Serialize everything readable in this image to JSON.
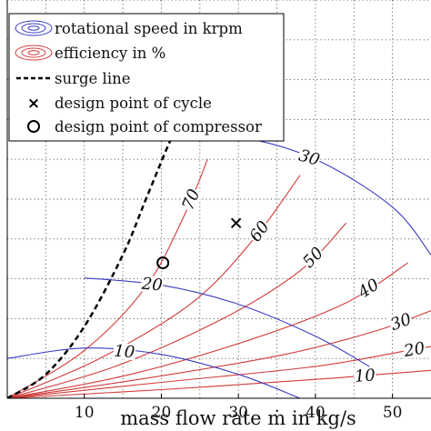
{
  "chart_data": {
    "type": "line",
    "title": "",
    "xlabel": "mass flow rate ṁ in kg/s",
    "ylabel": "",
    "xlim": [
      0,
      55
    ],
    "x_ticks": [
      "10",
      "20",
      "30",
      "40",
      "50"
    ],
    "grid": true,
    "legend_position": "top-left",
    "legend": [
      "rotational speed in krpm",
      "efficiency in %",
      "surge line",
      "design point of cycle",
      "design point of compressor"
    ],
    "colors": {
      "speed": "#3b3bc4",
      "efficiency": "#d23a3a",
      "surge": "#000000",
      "grid": "#555555"
    },
    "speed_lines": [
      {
        "label": "10",
        "points": [
          [
            0,
            0.05
          ],
          [
            10,
            0.063
          ],
          [
            20,
            0.055
          ],
          [
            30,
            0.03
          ],
          [
            38,
            0.0
          ]
        ]
      },
      {
        "label": "20",
        "points": [
          [
            10,
            0.151
          ],
          [
            20,
            0.142
          ],
          [
            30,
            0.118
          ],
          [
            40,
            0.078
          ],
          [
            47,
            0.04
          ]
        ]
      },
      {
        "label": "30",
        "points": [
          [
            20,
            0.33
          ],
          [
            30,
            0.328
          ],
          [
            40,
            0.3
          ],
          [
            50,
            0.24
          ],
          [
            55,
            0.18
          ]
        ]
      }
    ],
    "efficiency_contours": [
      {
        "label": "70",
        "points": [
          [
            0,
            0.0
          ],
          [
            10,
            0.06
          ],
          [
            18,
            0.14
          ],
          [
            23,
            0.23
          ],
          [
            26,
            0.3
          ]
        ]
      },
      {
        "label": "60",
        "points": [
          [
            0,
            0.0
          ],
          [
            12,
            0.05
          ],
          [
            24,
            0.12
          ],
          [
            32,
            0.2
          ],
          [
            38,
            0.28
          ]
        ]
      },
      {
        "label": "50",
        "points": [
          [
            0,
            0.0
          ],
          [
            14,
            0.04
          ],
          [
            28,
            0.1
          ],
          [
            38,
            0.16
          ],
          [
            44,
            0.22
          ]
        ]
      },
      {
        "label": "40",
        "points": [
          [
            0,
            0.0
          ],
          [
            16,
            0.03
          ],
          [
            32,
            0.075
          ],
          [
            44,
            0.12
          ],
          [
            52,
            0.17
          ]
        ]
      },
      {
        "label": "30",
        "points": [
          [
            0,
            0.0
          ],
          [
            18,
            0.025
          ],
          [
            36,
            0.055
          ],
          [
            48,
            0.085
          ],
          [
            55,
            0.11
          ]
        ]
      },
      {
        "label": "20",
        "points": [
          [
            0,
            0.0
          ],
          [
            20,
            0.02
          ],
          [
            40,
            0.04
          ],
          [
            52,
            0.06
          ],
          [
            55,
            0.065
          ]
        ]
      },
      {
        "label": "10",
        "points": [
          [
            0,
            0.0
          ],
          [
            22,
            0.012
          ],
          [
            42,
            0.025
          ],
          [
            55,
            0.035
          ]
        ]
      }
    ],
    "surge_line": [
      [
        0,
        0.0
      ],
      [
        5,
        0.03
      ],
      [
        10,
        0.09
      ],
      [
        15,
        0.18
      ],
      [
        18,
        0.25
      ],
      [
        21,
        0.32
      ],
      [
        23,
        0.36
      ]
    ],
    "design_point_cycle": [
      29.7,
      0.22
    ],
    "design_point_compressor": [
      20.2,
      0.17
    ],
    "legend_text": {
      "speed": "rotational speed in krpm",
      "efficiency": "efficiency in %",
      "surge": "surge line",
      "cycle": "design point of cycle",
      "compressor": "design point of compressor"
    }
  }
}
